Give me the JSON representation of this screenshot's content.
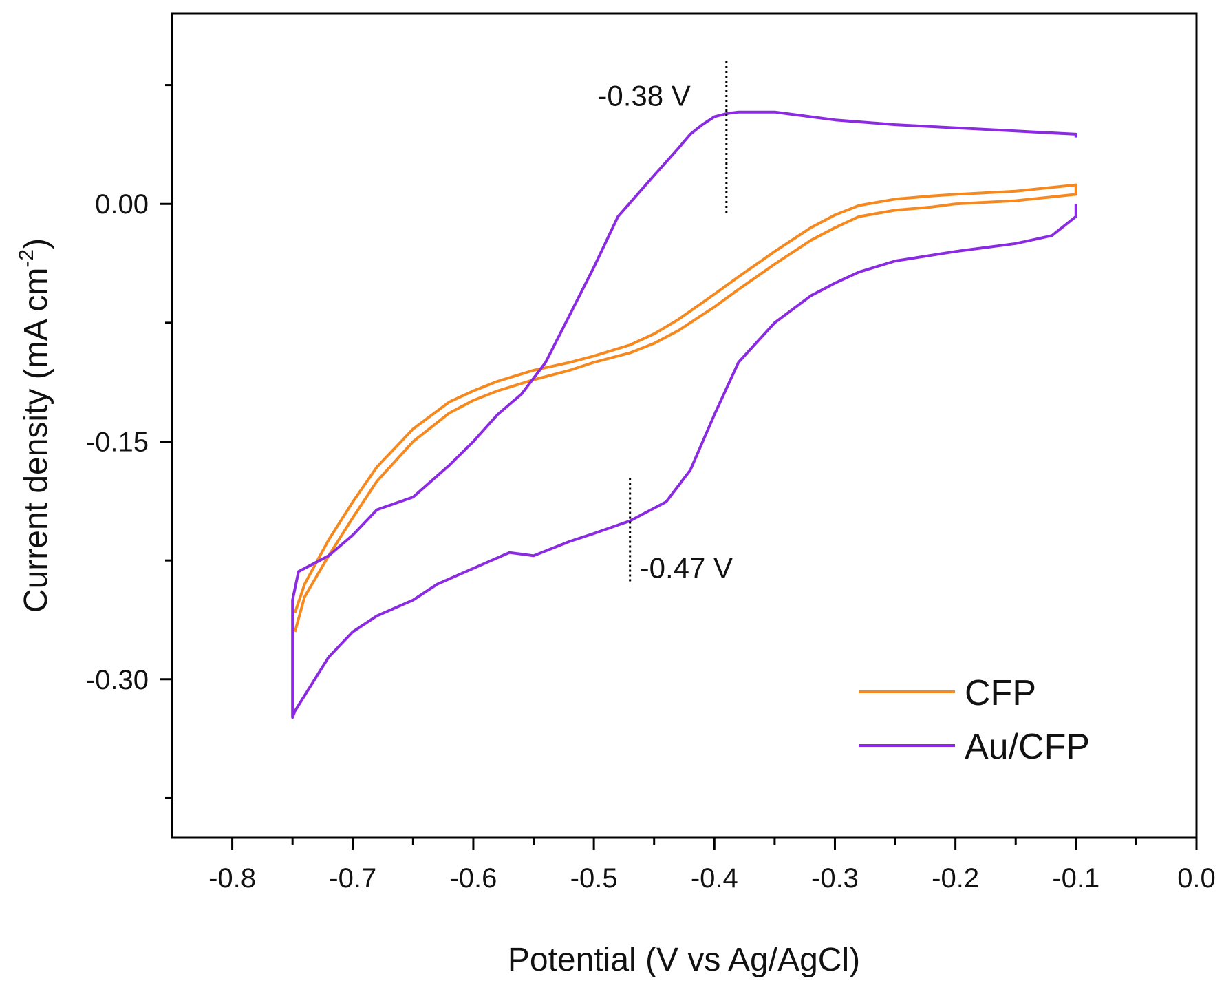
{
  "chart_data": {
    "type": "line",
    "title": "",
    "xlabel": "Potential (V vs Ag/AgCl)",
    "ylabel": "Current density (mA cm",
    "ylabel_sup": "-2",
    "ylabel_close": ")",
    "xlim": [
      -0.85,
      0.0
    ],
    "ylim": [
      -0.4,
      0.12
    ],
    "x_ticks": [
      -0.8,
      -0.7,
      -0.6,
      -0.5,
      -0.4,
      -0.3,
      -0.2,
      -0.1,
      0.0
    ],
    "x_tick_labels": [
      "-0.8",
      "-0.7",
      "-0.6",
      "-0.5",
      "-0.4",
      "-0.3",
      "-0.2",
      "-0.1",
      "0.0"
    ],
    "y_ticks": [
      0.0,
      -0.15,
      -0.3
    ],
    "y_tick_labels": [
      "0.00",
      "-0.15",
      "-0.30"
    ],
    "legend_position": "bottom-right",
    "series": [
      {
        "name": "CFP",
        "color": "#F5891F",
        "x": [
          -0.748,
          -0.74,
          -0.72,
          -0.7,
          -0.68,
          -0.65,
          -0.62,
          -0.6,
          -0.58,
          -0.55,
          -0.52,
          -0.5,
          -0.47,
          -0.45,
          -0.43,
          -0.4,
          -0.38,
          -0.35,
          -0.32,
          -0.3,
          -0.28,
          -0.25,
          -0.22,
          -0.2,
          -0.15,
          -0.1,
          -0.1,
          -0.15,
          -0.2,
          -0.22,
          -0.25,
          -0.28,
          -0.3,
          -0.32,
          -0.35,
          -0.38,
          -0.4,
          -0.43,
          -0.45,
          -0.47,
          -0.5,
          -0.52,
          -0.55,
          -0.58,
          -0.6,
          -0.62,
          -0.65,
          -0.68,
          -0.7,
          -0.72,
          -0.74,
          -0.748
        ],
        "y": [
          -0.258,
          -0.24,
          -0.212,
          -0.188,
          -0.166,
          -0.142,
          -0.125,
          -0.118,
          -0.112,
          -0.105,
          -0.1,
          -0.096,
          -0.089,
          -0.082,
          -0.073,
          -0.057,
          -0.046,
          -0.03,
          -0.015,
          -0.007,
          -0.001,
          0.003,
          0.005,
          0.006,
          0.008,
          0.012,
          0.006,
          0.002,
          0.0,
          -0.002,
          -0.004,
          -0.008,
          -0.015,
          -0.023,
          -0.038,
          -0.054,
          -0.065,
          -0.08,
          -0.088,
          -0.094,
          -0.1,
          -0.105,
          -0.111,
          -0.118,
          -0.124,
          -0.132,
          -0.15,
          -0.175,
          -0.198,
          -0.222,
          -0.248,
          -0.27
        ]
      },
      {
        "name": "Au/CFP",
        "color": "#8A2BE2",
        "x": [
          -0.1,
          -0.1,
          -0.12,
          -0.15,
          -0.2,
          -0.25,
          -0.28,
          -0.3,
          -0.32,
          -0.35,
          -0.38,
          -0.4,
          -0.42,
          -0.44,
          -0.46,
          -0.47,
          -0.5,
          -0.52,
          -0.55,
          -0.57,
          -0.6,
          -0.63,
          -0.65,
          -0.68,
          -0.7,
          -0.72,
          -0.748,
          -0.75,
          -0.75,
          -0.745,
          -0.72,
          -0.7,
          -0.68,
          -0.65,
          -0.62,
          -0.6,
          -0.58,
          -0.56,
          -0.54,
          -0.52,
          -0.5,
          -0.48,
          -0.45,
          -0.43,
          -0.42,
          -0.41,
          -0.4,
          -0.39,
          -0.38,
          -0.35,
          -0.3,
          -0.25,
          -0.2,
          -0.15,
          -0.1,
          -0.1
        ],
        "y": [
          0.0,
          -0.008,
          -0.02,
          -0.025,
          -0.03,
          -0.036,
          -0.043,
          -0.05,
          -0.058,
          -0.075,
          -0.1,
          -0.133,
          -0.168,
          -0.188,
          -0.196,
          -0.2,
          -0.208,
          -0.213,
          -0.222,
          -0.22,
          -0.23,
          -0.24,
          -0.25,
          -0.26,
          -0.27,
          -0.286,
          -0.32,
          -0.324,
          -0.25,
          -0.232,
          -0.222,
          -0.209,
          -0.193,
          -0.185,
          -0.165,
          -0.15,
          -0.133,
          -0.12,
          -0.1,
          -0.07,
          -0.04,
          -0.008,
          0.018,
          0.035,
          0.044,
          0.05,
          0.055,
          0.057,
          0.058,
          0.058,
          0.053,
          0.05,
          0.048,
          0.046,
          0.044,
          0.042
        ]
      }
    ],
    "annotations": [
      {
        "text": "-0.38 V",
        "x": -0.39,
        "y_from": -0.007,
        "y_to": 0.09
      },
      {
        "text": "-0.47 V",
        "x": -0.47,
        "y_from": -0.24,
        "y_to": -0.173
      }
    ]
  }
}
